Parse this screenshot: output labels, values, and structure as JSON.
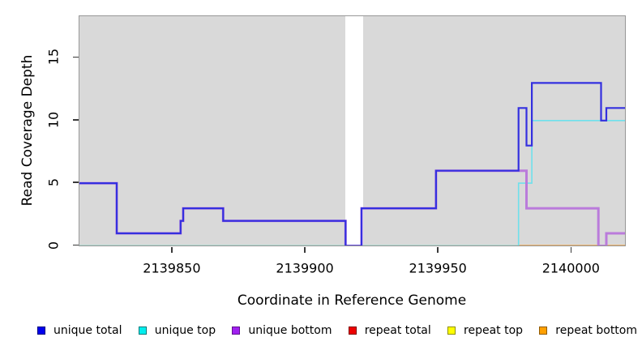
{
  "chart_data": {
    "type": "line",
    "subtype": "step-coverage-plot",
    "title": "",
    "xlabel": "Coordinate in Reference Genome",
    "ylabel": "Read Coverage Depth",
    "xlim": [
      2139815,
      2140020
    ],
    "ylim": [
      0,
      18.3
    ],
    "x_ticks": [
      2139850,
      2139900,
      2139950,
      2140000
    ],
    "y_ticks": [
      0,
      5,
      10,
      15
    ],
    "grid": false,
    "legend_position": "bottom",
    "plot_background": "#D9D9D9",
    "masked_region": {
      "x_start": 2139915,
      "x_end": 2139921.5
    },
    "baseline_blend": {
      "note": "visible color of overlapping zero-depth lines along y=0",
      "split_x": 2139980,
      "left_color": "#8FD48F",
      "right_color": "#FF8C00"
    },
    "series": [
      {
        "name": "repeat top",
        "color": "#EEEE00",
        "width": 1.6,
        "steps": [
          [
            2139815,
            0
          ]
        ]
      },
      {
        "name": "repeat total",
        "color": "#EE2222",
        "width": 1.6,
        "steps": [
          [
            2139815,
            0
          ]
        ]
      },
      {
        "name": "repeat bottom",
        "color": "#FF8C00",
        "width": 1.8,
        "steps": [
          [
            2139815,
            0
          ]
        ]
      },
      {
        "name": "unique top",
        "color": "#6FE0EC",
        "width": 1.6,
        "steps": [
          [
            2139815,
            0
          ],
          [
            2139980,
            5
          ],
          [
            2139985,
            10
          ]
        ]
      },
      {
        "name": "unique bottom",
        "color": "#BA7BDB",
        "width": 3,
        "steps": [
          [
            2139815,
            5
          ],
          [
            2139829,
            1
          ],
          [
            2139853,
            2
          ],
          [
            2139854,
            3
          ],
          [
            2139869,
            2
          ],
          [
            2139915,
            0
          ],
          [
            2139921,
            3
          ],
          [
            2139949,
            6
          ],
          [
            2139983,
            3
          ],
          [
            2140010,
            0
          ],
          [
            2140013,
            1
          ]
        ]
      },
      {
        "name": "unique total",
        "color": "#3430DF",
        "width": 2.2,
        "steps": [
          [
            2139815,
            5
          ],
          [
            2139829,
            1
          ],
          [
            2139853,
            2
          ],
          [
            2139854,
            3
          ],
          [
            2139869,
            2
          ],
          [
            2139915,
            0
          ],
          [
            2139921,
            3
          ],
          [
            2139949,
            6
          ],
          [
            2139980,
            11
          ],
          [
            2139983,
            8
          ],
          [
            2139985,
            13
          ],
          [
            2140011,
            10
          ],
          [
            2140013,
            11
          ]
        ]
      }
    ]
  },
  "axes": {
    "x_title": "Coordinate in Reference Genome",
    "y_title": "Read Coverage Depth",
    "x_tick_labels": [
      "2139850",
      "2139900",
      "2139950",
      "2140000"
    ],
    "y_tick_labels": [
      "0",
      "5",
      "10",
      "15"
    ]
  },
  "legend": {
    "items": [
      {
        "label": "unique total",
        "fill": "#0000EE",
        "border": "#000080"
      },
      {
        "label": "unique top",
        "fill": "#00EEEE",
        "border": "#007A7A"
      },
      {
        "label": "unique bottom",
        "fill": "#A020F0",
        "border": "#60108F"
      },
      {
        "label": "repeat total",
        "fill": "#EE0000",
        "border": "#800000"
      },
      {
        "label": "repeat top",
        "fill": "#FFFF00",
        "border": "#8F8F00"
      },
      {
        "label": "repeat bottom",
        "fill": "#FFA000",
        "border": "#8F5A00"
      }
    ]
  }
}
